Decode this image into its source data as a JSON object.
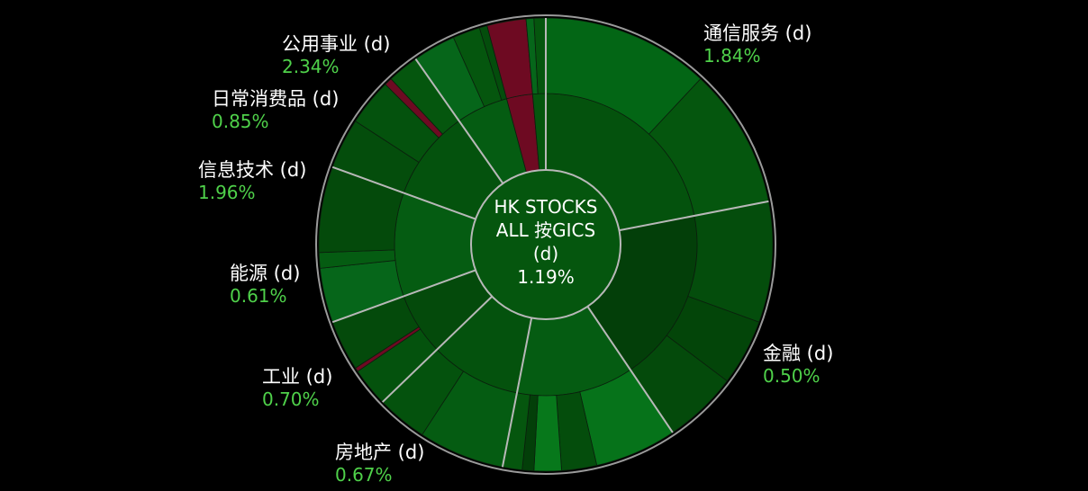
{
  "chart_data": {
    "type": "sunburst",
    "title": "HK STOCKS ALL 按GICS (d)",
    "center": {
      "line1": "HK STOCKS",
      "line2": "ALL 按GICS",
      "line3": "(d)",
      "value": "1.19%"
    },
    "sectors": [
      {
        "name": "通信服务 (d)",
        "change": "1.84%",
        "start_deg": 0,
        "end_deg": 79,
        "color": "#04520d",
        "industries": [
          {
            "start_deg": 0,
            "end_deg": 79,
            "color": "#04520d",
            "subs": [
              {
                "start_deg": 0,
                "end_deg": 43,
                "color": "#036615"
              },
              {
                "start_deg": 43,
                "end_deg": 79,
                "color": "#05560e"
              }
            ]
          }
        ]
      },
      {
        "name": "金融 (d)",
        "change": "0.50%",
        "start_deg": 79,
        "end_deg": 146,
        "color": "#033f09",
        "industries": [
          {
            "start_deg": 79,
            "end_deg": 146,
            "color": "#033f09",
            "subs": [
              {
                "start_deg": 79,
                "end_deg": 110,
                "color": "#044d0c"
              },
              {
                "start_deg": 110,
                "end_deg": 127,
                "color": "#034509"
              },
              {
                "start_deg": 127,
                "end_deg": 146,
                "color": "#044a0b"
              }
            ]
          }
        ]
      },
      {
        "name": "房地产 (d)",
        "change": "0.67%",
        "start_deg": 146,
        "end_deg": 191,
        "color": "#055c12",
        "industries": [
          {
            "start_deg": 146,
            "end_deg": 191,
            "color": "#055c12",
            "subs": [
              {
                "start_deg": 146,
                "end_deg": 167,
                "color": "#06731a"
              },
              {
                "start_deg": 167,
                "end_deg": 176,
                "color": "#044d0c"
              },
              {
                "start_deg": 176,
                "end_deg": 183,
                "color": "#07781b"
              },
              {
                "start_deg": 183,
                "end_deg": 186,
                "color": "#033f09"
              },
              {
                "start_deg": 186,
                "end_deg": 191,
                "color": "#05560e"
              }
            ]
          }
        ]
      },
      {
        "name": "工业 (d)",
        "change": "0.70%",
        "start_deg": 191,
        "end_deg": 226,
        "color": "#04520d",
        "industries": [
          {
            "start_deg": 191,
            "end_deg": 226,
            "color": "#04520d",
            "subs": [
              {
                "start_deg": 191,
                "end_deg": 213,
                "color": "#055c12"
              },
              {
                "start_deg": 213,
                "end_deg": 226,
                "color": "#04520d"
              }
            ]
          }
        ]
      },
      {
        "name": "能源 (d)",
        "change": "0.61%",
        "start_deg": 226,
        "end_deg": 250,
        "color": "#044a0b",
        "industries": [
          {
            "start_deg": 226,
            "end_deg": 250,
            "color": "#044a0b",
            "subs": [
              {
                "start_deg": 226,
                "end_deg": 236,
                "color": "#04520d"
              },
              {
                "start_deg": 236,
                "end_deg": 237,
                "color": "#6e0a22"
              },
              {
                "start_deg": 237,
                "end_deg": 250,
                "color": "#044a0b"
              }
            ]
          }
        ]
      },
      {
        "name": "信息技术 (d)",
        "change": "1.96%",
        "start_deg": 250,
        "end_deg": 290,
        "color": "#055c12",
        "industries": [
          {
            "start_deg": 250,
            "end_deg": 290,
            "color": "#055c12",
            "subs": [
              {
                "start_deg": 250,
                "end_deg": 264,
                "color": "#06661a"
              },
              {
                "start_deg": 264,
                "end_deg": 268,
                "color": "#055c12"
              },
              {
                "start_deg": 268,
                "end_deg": 290,
                "color": "#044a0b"
              }
            ]
          }
        ]
      },
      {
        "name": "日常消费品 (d)",
        "change": "0.85%",
        "start_deg": 290,
        "end_deg": 325,
        "color": "#04520d",
        "industries": [
          {
            "start_deg": 290,
            "end_deg": 325,
            "color": "#04520d",
            "subs": [
              {
                "start_deg": 290,
                "end_deg": 303,
                "color": "#044d0c"
              },
              {
                "start_deg": 303,
                "end_deg": 315,
                "color": "#04520d"
              },
              {
                "start_deg": 315,
                "end_deg": 317,
                "color": "#6e0a22"
              },
              {
                "start_deg": 317,
                "end_deg": 325,
                "color": "#05560e"
              }
            ]
          }
        ]
      },
      {
        "name": "公用事业 (d)",
        "change": "2.34%",
        "start_deg": 325,
        "end_deg": 360,
        "color": "#055c12",
        "industries": [
          {
            "start_deg": 325,
            "end_deg": 345,
            "color": "#055c12",
            "subs": [
              {
                "start_deg": 325,
                "end_deg": 336,
                "color": "#06661a"
              },
              {
                "start_deg": 336,
                "end_deg": 343,
                "color": "#05560e"
              },
              {
                "start_deg": 343,
                "end_deg": 345,
                "color": "#044d0c"
              }
            ]
          },
          {
            "start_deg": 345,
            "end_deg": 355,
            "color": "#6e0a22",
            "subs": [
              {
                "start_deg": 345,
                "end_deg": 355,
                "color": "#6e0a22"
              }
            ]
          },
          {
            "start_deg": 355,
            "end_deg": 360,
            "color": "#05560e",
            "subs": [
              {
                "start_deg": 355,
                "end_deg": 357,
                "color": "#06661a"
              },
              {
                "start_deg": 357,
                "end_deg": 360,
                "color": "#05560e"
              }
            ]
          }
        ]
      }
    ],
    "colors": {
      "background": "#000000",
      "center_fill": "#05560e",
      "separator": "#b8b8b8",
      "label_text": "#ffffff",
      "change_text": "#4fd14a"
    }
  }
}
